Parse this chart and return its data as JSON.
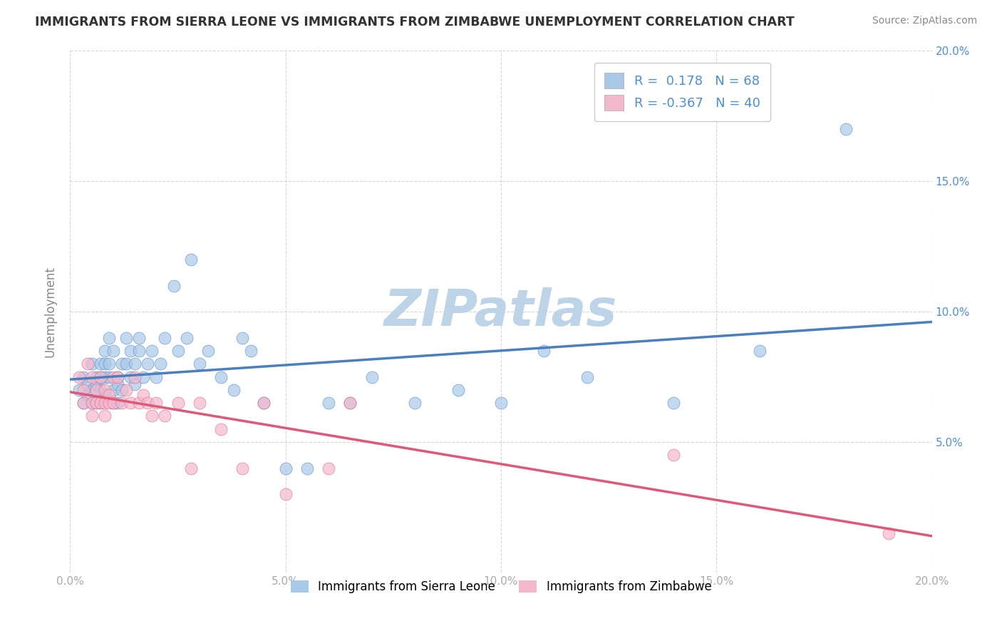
{
  "title": "IMMIGRANTS FROM SIERRA LEONE VS IMMIGRANTS FROM ZIMBABWE UNEMPLOYMENT CORRELATION CHART",
  "source": "Source: ZipAtlas.com",
  "ylabel": "Unemployment",
  "xlim": [
    0.0,
    0.2
  ],
  "ylim": [
    0.0,
    0.2
  ],
  "xtick_vals": [
    0.0,
    0.05,
    0.1,
    0.15,
    0.2
  ],
  "ytick_vals": [
    0.0,
    0.05,
    0.1,
    0.15,
    0.2
  ],
  "legend_label_r1": "R =  0.178",
  "legend_label_n1": "N = 68",
  "legend_label_r2": "R = -0.367",
  "legend_label_n2": "N = 40",
  "legend_label_1": "Immigrants from Sierra Leone",
  "legend_label_2": "Immigrants from Zimbabwe",
  "sierra_leone_color": "#a8c8e8",
  "sierra_leone_line_color": "#4a7fc0",
  "sierra_leone_alpha": 0.7,
  "zimbabwe_color": "#f4b8cc",
  "zimbabwe_line_color": "#e05878",
  "zimbabwe_alpha": 0.7,
  "title_color": "#333333",
  "source_color": "#888888",
  "axis_label_color": "#888888",
  "tick_color_right": "#4a90d9",
  "tick_color_x": "#aaaaaa",
  "grid_color": "#cccccc",
  "background_color": "#ffffff",
  "watermark_text": "ZIPatlas",
  "watermark_color": "#bdd4e8",
  "dashed_line_color": "#99bbdd",
  "sierra_leone_scatter_x": [
    0.002,
    0.003,
    0.003,
    0.004,
    0.004,
    0.005,
    0.005,
    0.005,
    0.006,
    0.006,
    0.006,
    0.007,
    0.007,
    0.007,
    0.007,
    0.008,
    0.008,
    0.008,
    0.008,
    0.009,
    0.009,
    0.009,
    0.01,
    0.01,
    0.01,
    0.011,
    0.011,
    0.011,
    0.012,
    0.012,
    0.013,
    0.013,
    0.014,
    0.014,
    0.015,
    0.015,
    0.016,
    0.016,
    0.017,
    0.018,
    0.019,
    0.02,
    0.021,
    0.022,
    0.024,
    0.025,
    0.027,
    0.028,
    0.03,
    0.032,
    0.035,
    0.038,
    0.04,
    0.042,
    0.045,
    0.05,
    0.055,
    0.06,
    0.065,
    0.07,
    0.08,
    0.09,
    0.1,
    0.11,
    0.12,
    0.14,
    0.16,
    0.18
  ],
  "sierra_leone_scatter_y": [
    0.07,
    0.065,
    0.075,
    0.072,
    0.068,
    0.08,
    0.07,
    0.065,
    0.075,
    0.072,
    0.065,
    0.08,
    0.075,
    0.07,
    0.065,
    0.085,
    0.08,
    0.075,
    0.068,
    0.09,
    0.08,
    0.075,
    0.07,
    0.065,
    0.085,
    0.075,
    0.072,
    0.065,
    0.08,
    0.07,
    0.09,
    0.08,
    0.085,
    0.075,
    0.08,
    0.072,
    0.09,
    0.085,
    0.075,
    0.08,
    0.085,
    0.075,
    0.08,
    0.09,
    0.11,
    0.085,
    0.09,
    0.12,
    0.08,
    0.085,
    0.075,
    0.07,
    0.09,
    0.085,
    0.065,
    0.04,
    0.04,
    0.065,
    0.065,
    0.075,
    0.065,
    0.07,
    0.065,
    0.085,
    0.075,
    0.065,
    0.085,
    0.17
  ],
  "zimbabwe_scatter_x": [
    0.002,
    0.003,
    0.003,
    0.004,
    0.005,
    0.005,
    0.005,
    0.006,
    0.006,
    0.007,
    0.007,
    0.008,
    0.008,
    0.008,
    0.009,
    0.009,
    0.01,
    0.01,
    0.011,
    0.012,
    0.013,
    0.014,
    0.015,
    0.016,
    0.017,
    0.018,
    0.019,
    0.02,
    0.022,
    0.025,
    0.028,
    0.03,
    0.035,
    0.04,
    0.045,
    0.05,
    0.06,
    0.065,
    0.14,
    0.19
  ],
  "zimbabwe_scatter_y": [
    0.075,
    0.07,
    0.065,
    0.08,
    0.075,
    0.065,
    0.06,
    0.07,
    0.065,
    0.075,
    0.065,
    0.07,
    0.065,
    0.06,
    0.068,
    0.065,
    0.075,
    0.065,
    0.075,
    0.065,
    0.07,
    0.065,
    0.075,
    0.065,
    0.068,
    0.065,
    0.06,
    0.065,
    0.06,
    0.065,
    0.04,
    0.065,
    0.055,
    0.04,
    0.065,
    0.03,
    0.04,
    0.065,
    0.045,
    0.015
  ]
}
